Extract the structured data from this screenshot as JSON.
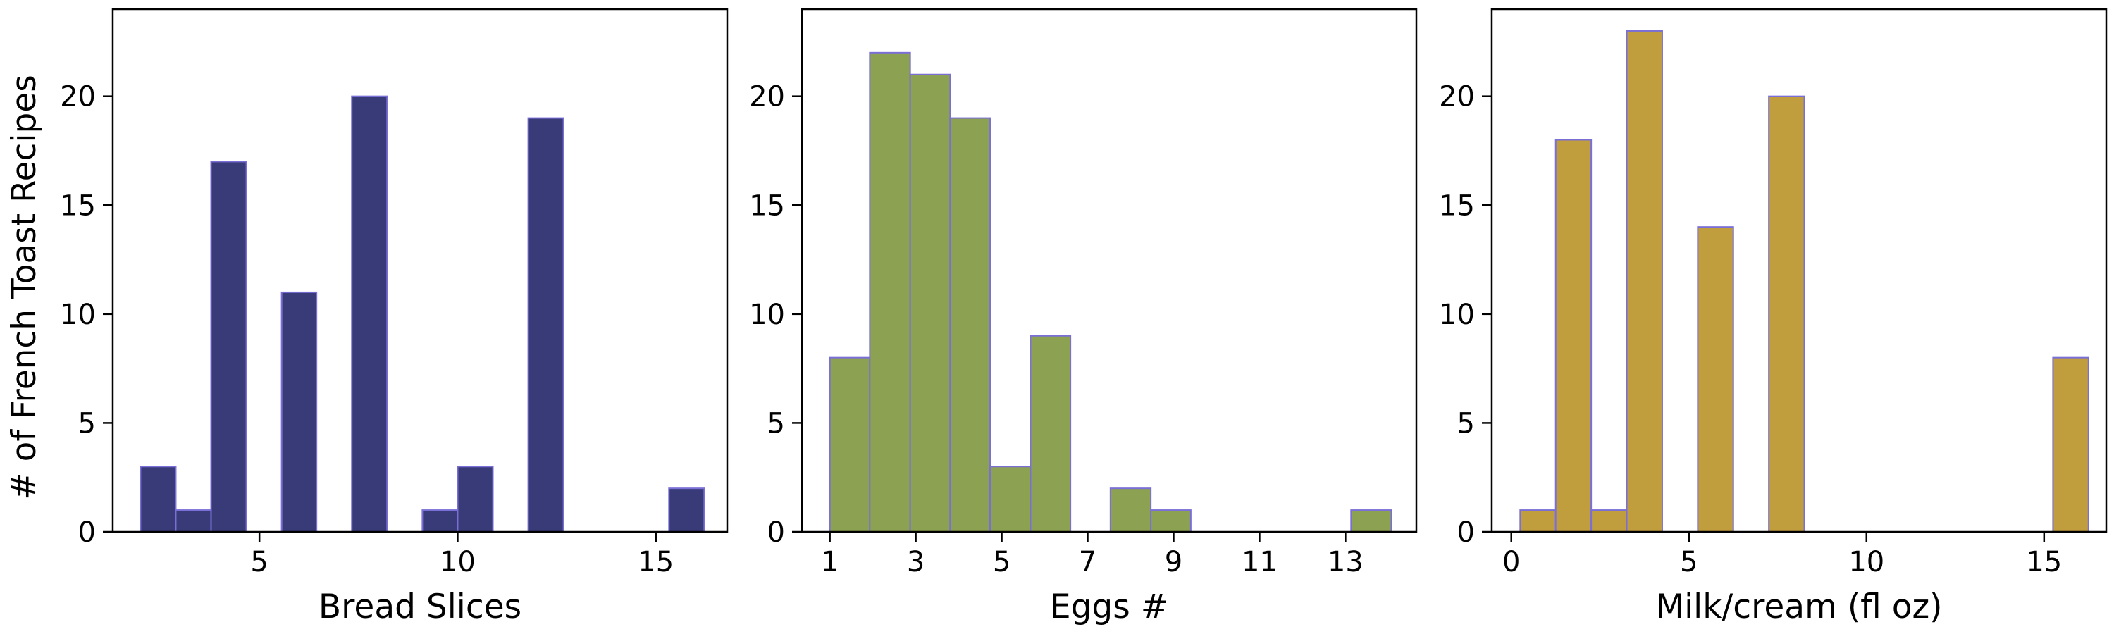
{
  "figure": {
    "ylabel": "# of French Toast Recipes"
  },
  "chart_data": [
    {
      "type": "bar",
      "title": "",
      "xlabel": "Bread Slices",
      "ylabel": "# of French Toast Recipes",
      "xlim": [
        1.3,
        16.8
      ],
      "ylim": [
        0,
        24
      ],
      "xticks": [
        5,
        10,
        15
      ],
      "yticks": [
        0,
        5,
        10,
        15,
        20
      ],
      "bin_edges": [
        2.0,
        2.89,
        3.78,
        4.67,
        5.56,
        6.44,
        7.33,
        8.22,
        9.11,
        10.0,
        10.89,
        11.78,
        12.67,
        13.56,
        14.44,
        15.33,
        16.22
      ],
      "values": [
        3,
        1,
        17,
        0,
        11,
        0,
        20,
        0,
        1,
        3,
        0,
        19,
        0,
        0,
        0,
        2
      ],
      "bar_color": "#393b78",
      "edge_color": "#7a6fd6",
      "grid": false
    },
    {
      "type": "bar",
      "title": "",
      "xlabel": "Eggs #",
      "ylabel": "",
      "xlim": [
        0.35,
        14.65
      ],
      "ylim": [
        0,
        24
      ],
      "xticks": [
        1,
        3,
        5,
        7,
        9,
        11,
        13
      ],
      "yticks": [
        0,
        5,
        10,
        15,
        20
      ],
      "bin_edges": [
        1.0,
        1.93,
        2.87,
        3.8,
        4.73,
        5.67,
        6.6,
        7.53,
        8.47,
        9.4,
        10.33,
        11.27,
        12.2,
        13.13,
        14.07
      ],
      "values": [
        8,
        22,
        21,
        19,
        3,
        9,
        0,
        2,
        1,
        0,
        0,
        0,
        0,
        1
      ],
      "bar_color": "#8ca152",
      "edge_color": "#7a6fd6",
      "grid": false
    },
    {
      "type": "bar",
      "title": "",
      "xlabel": "Milk/cream (fl oz)",
      "ylabel": "",
      "xlim": [
        -0.55,
        16.75
      ],
      "ylim": [
        0,
        24
      ],
      "xticks": [
        0,
        5,
        10,
        15
      ],
      "yticks": [
        0,
        5,
        10,
        15,
        20
      ],
      "bin_edges": [
        0.25,
        1.25,
        2.25,
        3.25,
        4.25,
        5.25,
        6.25,
        7.25,
        8.25,
        9.25,
        10.25,
        11.25,
        12.25,
        13.25,
        14.25,
        15.25,
        16.25
      ],
      "values": [
        1,
        18,
        1,
        23,
        0,
        14,
        0,
        20,
        0,
        0,
        0,
        0,
        0,
        0,
        0,
        8
      ],
      "bar_color": "#c09e3d",
      "edge_color": "#7a6fd6",
      "grid": false
    }
  ]
}
